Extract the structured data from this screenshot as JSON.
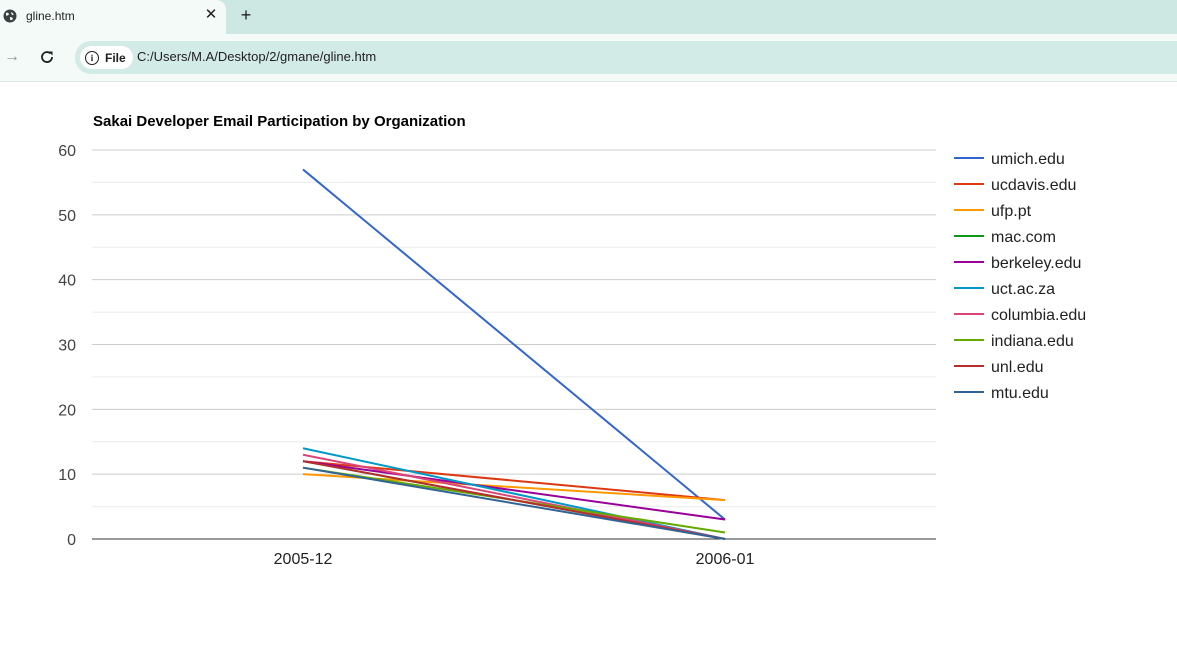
{
  "browser": {
    "tab_title": "gline.htm",
    "address_chip": "File",
    "url": "C:/Users/M.A/Desktop/2/gmane/gline.htm",
    "icons": {
      "globe": "globe-icon",
      "close": "close-icon",
      "new_tab": "plus-icon",
      "forward": "forward-arrow-icon",
      "reload": "reload-icon",
      "info": "info-icon"
    }
  },
  "chart_data": {
    "type": "line",
    "title": "Sakai Developer Email Participation by Organization",
    "categories": [
      "2005-12",
      "2006-01"
    ],
    "ylim": [
      0,
      60
    ],
    "yticks": [
      0,
      10,
      20,
      30,
      40,
      50,
      60
    ],
    "grid": true,
    "legend_position": "right",
    "series": [
      {
        "name": "umich.edu",
        "color": "#3366cc",
        "values": [
          57,
          3
        ]
      },
      {
        "name": "ucdavis.edu",
        "color": "#dc3912",
        "values": [
          12,
          6
        ]
      },
      {
        "name": "ufp.pt",
        "color": "#ff9900",
        "values": [
          10,
          6
        ]
      },
      {
        "name": "mac.com",
        "color": "#109618",
        "values": [
          12,
          0
        ]
      },
      {
        "name": "berkeley.edu",
        "color": "#990099",
        "values": [
          12,
          3
        ]
      },
      {
        "name": "uct.ac.za",
        "color": "#0099c6",
        "values": [
          14,
          0
        ]
      },
      {
        "name": "columbia.edu",
        "color": "#dd4477",
        "values": [
          13,
          0
        ]
      },
      {
        "name": "indiana.edu",
        "color": "#66aa00",
        "values": [
          11,
          1
        ]
      },
      {
        "name": "unl.edu",
        "color": "#b82e2e",
        "values": [
          12,
          0
        ]
      },
      {
        "name": "mtu.edu",
        "color": "#316395",
        "values": [
          11,
          0
        ]
      }
    ]
  }
}
